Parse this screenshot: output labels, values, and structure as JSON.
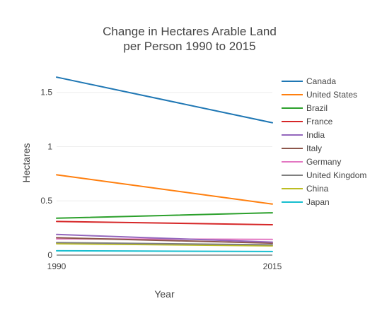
{
  "chart_data": {
    "type": "line",
    "title_lines": [
      "Change in Hectares Arable Land",
      "per Person 1990 to 2015"
    ],
    "xlabel": "Year",
    "ylabel": "Hectares",
    "x": [
      1990,
      2015
    ],
    "x_tick_labels": [
      "1990",
      "2015"
    ],
    "xlim": [
      1990,
      2015
    ],
    "ylim": [
      0,
      1.7
    ],
    "y_ticks": [
      0,
      0.5,
      1,
      1.5
    ],
    "y_tick_labels": [
      "0",
      "0.5",
      "1",
      "1.5"
    ],
    "grid": true,
    "legend_position": "right",
    "series": [
      {
        "name": "Canada",
        "color": "#1f77b4",
        "values": [
          1.64,
          1.22
        ]
      },
      {
        "name": "United States",
        "color": "#ff7f0e",
        "values": [
          0.74,
          0.47
        ]
      },
      {
        "name": "Brazil",
        "color": "#2ca02c",
        "values": [
          0.34,
          0.39
        ]
      },
      {
        "name": "France",
        "color": "#d62728",
        "values": [
          0.31,
          0.28
        ]
      },
      {
        "name": "India",
        "color": "#9467bd",
        "values": [
          0.19,
          0.12
        ]
      },
      {
        "name": "Italy",
        "color": "#8c564b",
        "values": [
          0.16,
          0.11
        ]
      },
      {
        "name": "Germany",
        "color": "#e377c2",
        "values": [
          0.15,
          0.145
        ]
      },
      {
        "name": "United Kingdom",
        "color": "#7f7f7f",
        "values": [
          0.115,
          0.095
        ]
      },
      {
        "name": "China",
        "color": "#bcbd22",
        "values": [
          0.105,
          0.085
        ]
      },
      {
        "name": "Japan",
        "color": "#17becf",
        "values": [
          0.04,
          0.033
        ]
      }
    ]
  }
}
